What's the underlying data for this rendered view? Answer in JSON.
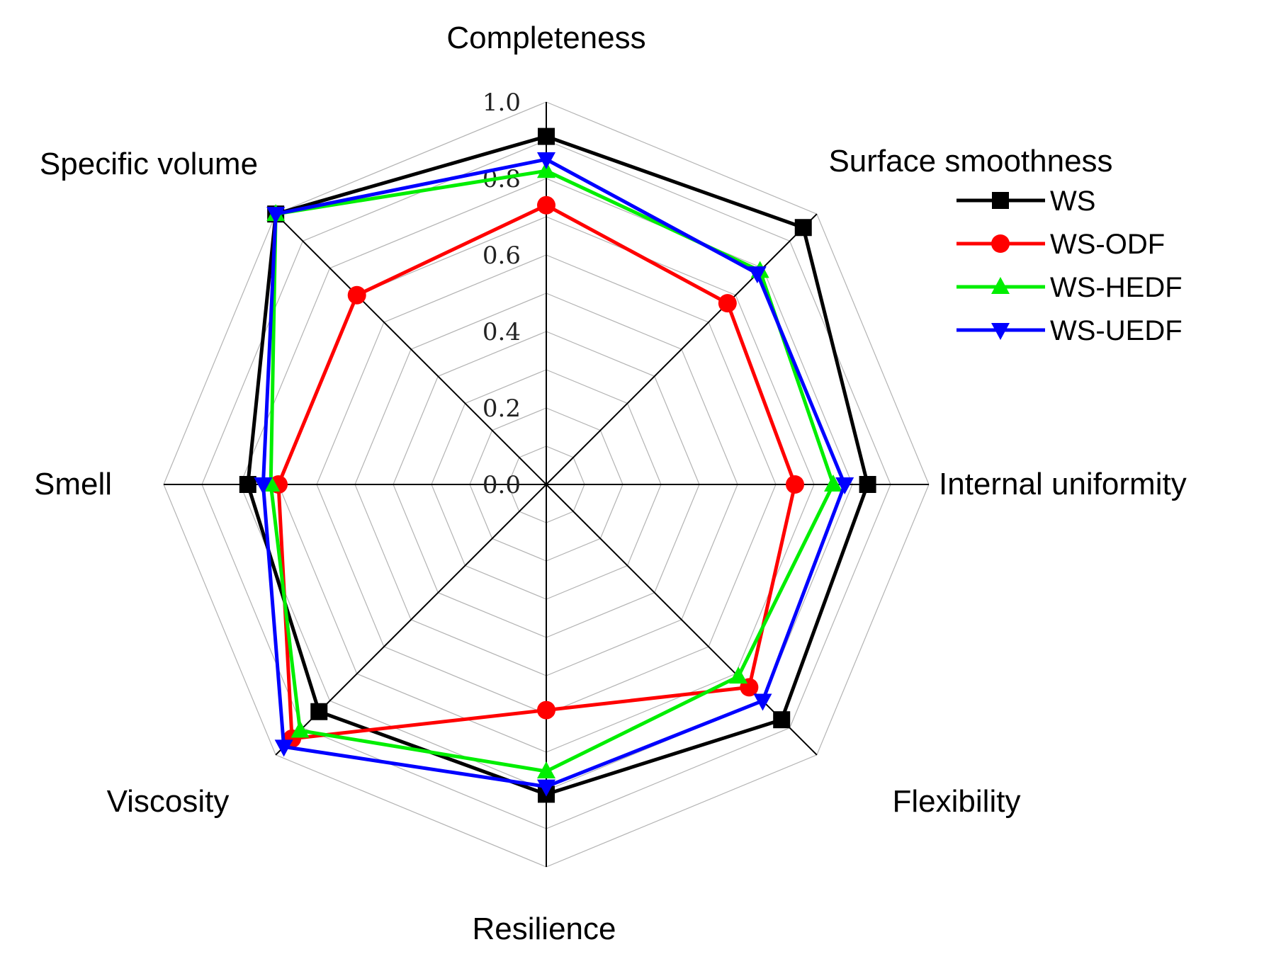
{
  "chart_data": {
    "type": "radar",
    "title": "",
    "axes": [
      "Completeness",
      "Surface smoothness",
      "Internal uniformity",
      "Flexibility",
      "Resilience",
      "Viscosity",
      "Smell",
      "Specific volume"
    ],
    "rlim": [
      0.0,
      1.0
    ],
    "ticks": [
      "0.0",
      "0.2",
      "0.4",
      "0.6",
      "0.8",
      "1.0"
    ],
    "tick_values": [
      0.0,
      0.2,
      0.4,
      0.6,
      0.8,
      1.0
    ],
    "grid": true,
    "legend_position": "right",
    "series": [
      {
        "name": "WS",
        "color": "#000000",
        "marker": "square",
        "values": [
          0.91,
          0.95,
          0.84,
          0.87,
          0.81,
          0.84,
          0.78,
          1.0
        ]
      },
      {
        "name": "WS-ODF",
        "color": "#ff0000",
        "marker": "circle",
        "values": [
          0.73,
          0.67,
          0.65,
          0.75,
          0.59,
          0.94,
          0.7,
          0.7
        ]
      },
      {
        "name": "WS-HEDF",
        "color": "#00ee00",
        "marker": "triangle-up",
        "values": [
          0.82,
          0.79,
          0.75,
          0.71,
          0.75,
          0.91,
          0.72,
          1.0
        ]
      },
      {
        "name": "WS-UEDF",
        "color": "#0000ff",
        "marker": "triangle-down",
        "values": [
          0.85,
          0.78,
          0.78,
          0.8,
          0.79,
          0.97,
          0.74,
          1.0
        ]
      }
    ]
  }
}
